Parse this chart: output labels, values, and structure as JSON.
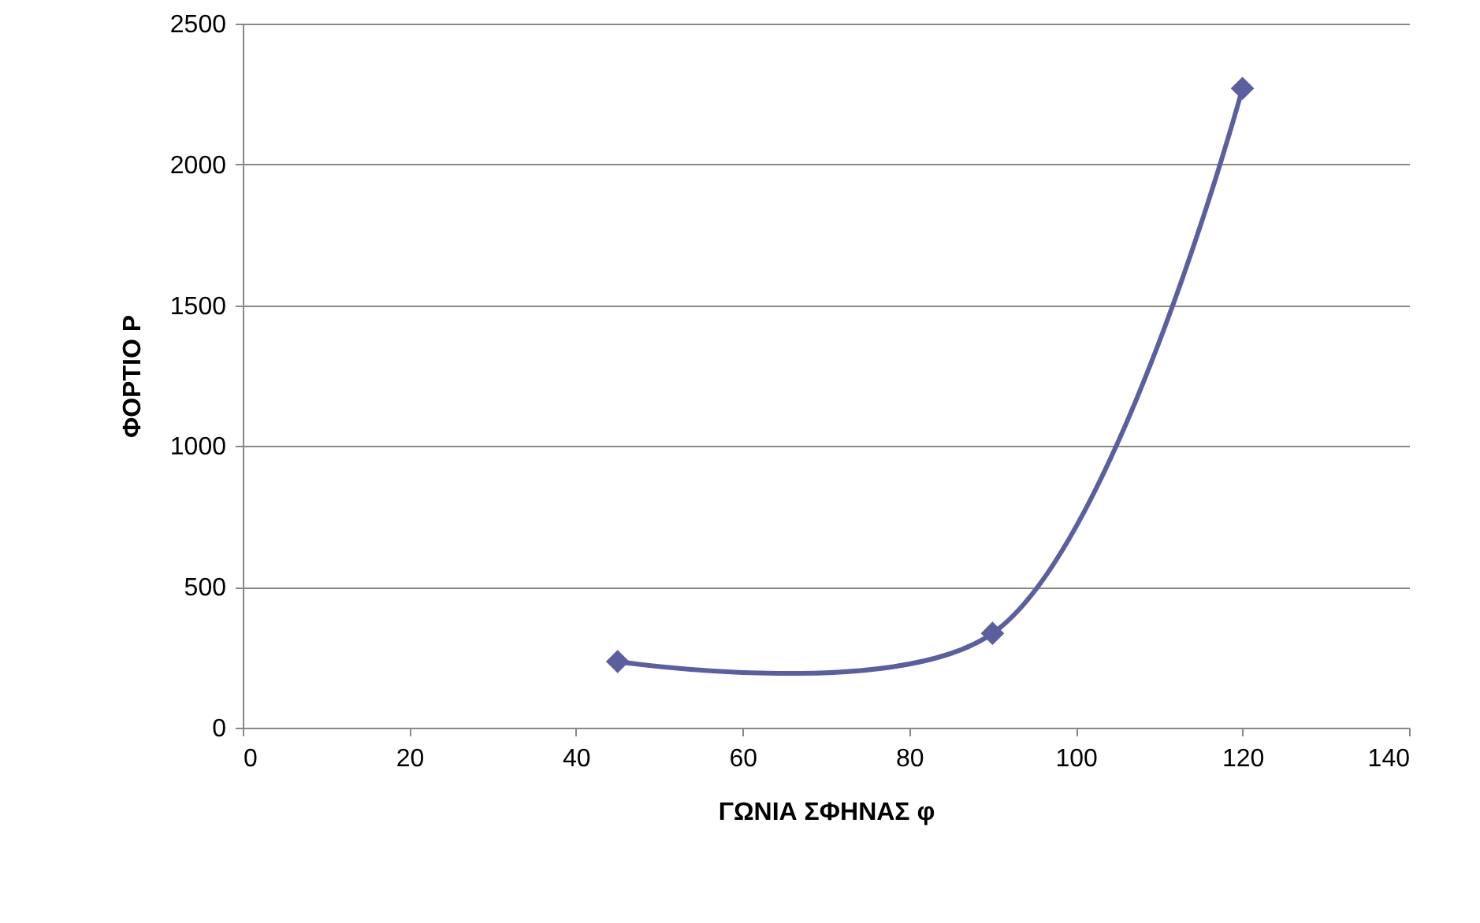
{
  "chart_data": {
    "type": "line",
    "xlabel": "ΓΩΝΙΑ ΣΦΗΝΑΣ φ",
    "ylabel": "ΦΟΡΤΙΟ P",
    "x": [
      45,
      90,
      120
    ],
    "series": [
      {
        "color": "#5c5f9e",
        "values": [
          235,
          335,
          2270
        ]
      }
    ],
    "xlim": [
      0,
      140
    ],
    "xticks": [
      0,
      20,
      40,
      60,
      80,
      100,
      120,
      140
    ],
    "ylim": [
      0,
      2500
    ],
    "yticks": [
      0,
      500,
      1000,
      1500,
      2000,
      2500
    ],
    "grid": "y",
    "marker": "diamond",
    "line_style": "solid"
  }
}
